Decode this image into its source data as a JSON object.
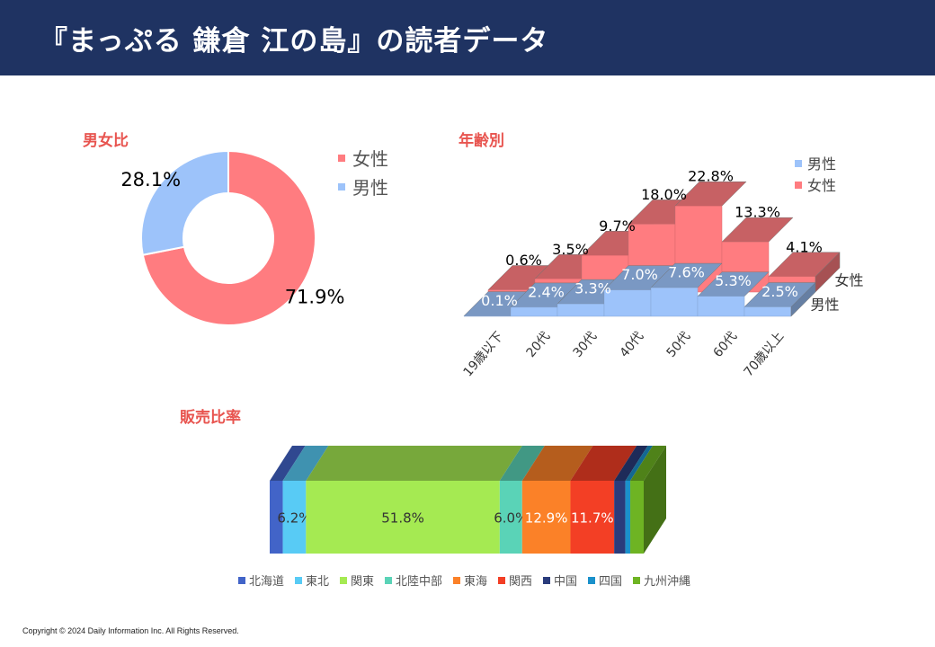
{
  "page": {
    "title": "『まっぷる 鎌倉 江の島』の読者データ",
    "copyright": "Copyright © 2024 Daily Information Inc. All Rights Reserved."
  },
  "chart_data": [
    {
      "id": "gender",
      "type": "pie",
      "title": "男女比",
      "categories": [
        "女性",
        "男性"
      ],
      "values": [
        71.9,
        28.1
      ],
      "labels": [
        "71.9%",
        "28.1%"
      ],
      "colors": [
        "#ff7c80",
        "#9dc3fa"
      ],
      "legend": "right"
    },
    {
      "id": "age",
      "type": "bar",
      "title": "年齢別",
      "categories": [
        "19歳以下",
        "20代",
        "30代",
        "40代",
        "50代",
        "60代",
        "70歳以上"
      ],
      "series": [
        {
          "name": "男性",
          "values": [
            0.1,
            2.4,
            3.3,
            7.0,
            7.6,
            5.3,
            2.5
          ],
          "labels": [
            "0.1%",
            "2.4%",
            "3.3%",
            "7.0%",
            "7.6%",
            "5.3%",
            "2.5%"
          ],
          "color": "#9dc3fa"
        },
        {
          "name": "女性",
          "values": [
            0.6,
            3.5,
            9.7,
            18.0,
            22.8,
            13.3,
            4.1
          ],
          "labels": [
            "0.6%",
            "3.5%",
            "9.7%",
            "18.0%",
            "22.8%",
            "13.3%",
            "4.1%"
          ],
          "color": "#ff7c80"
        }
      ],
      "legend": "top-right"
    },
    {
      "id": "sales",
      "type": "bar",
      "title": "販売比率",
      "stacked": true,
      "categories": [
        "北海道",
        "東北",
        "関東",
        "北陸中部",
        "東海",
        "関西",
        "中国",
        "四国",
        "九州沖縄"
      ],
      "values": [
        3.5,
        6.2,
        51.8,
        6.0,
        12.9,
        11.7,
        3.0,
        1.3,
        3.6
      ],
      "labels": [
        "",
        "6.2%",
        "51.8%",
        "6.0%",
        "12.9%",
        "11.7%",
        "",
        "",
        ""
      ],
      "colors": [
        "#4264c8",
        "#58cbf5",
        "#a5ea52",
        "#5ad3b7",
        "#fb8128",
        "#f33f25",
        "#2a3c7c",
        "#1a91cb",
        "#6eb423"
      ],
      "legend": "bottom"
    }
  ]
}
